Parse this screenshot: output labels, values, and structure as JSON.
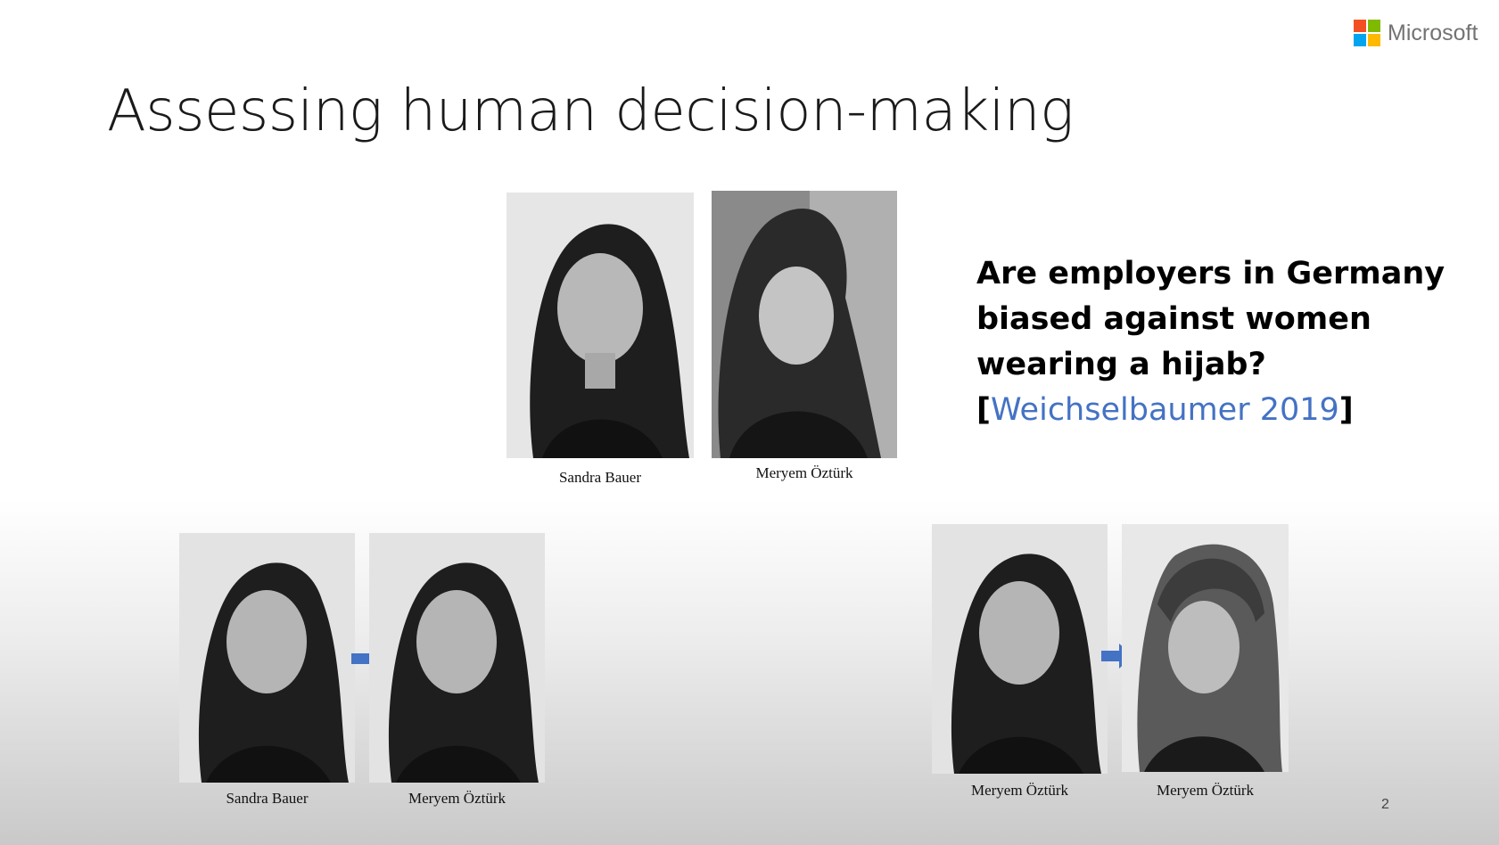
{
  "brand": {
    "name": "Microsoft",
    "logo_colors": [
      "#f25022",
      "#7fba00",
      "#00a4ef",
      "#ffb900"
    ]
  },
  "slide": {
    "title": "Assessing human decision-making",
    "question_text": "Are employers in Germany biased against women wearing a hijab? [",
    "citation": "Weichselbaumer 2019",
    "citation_close": "]",
    "citation_color": "#4472c4",
    "page_number": "2"
  },
  "photos": {
    "top_left_caption": "Sandra Bauer",
    "top_right_caption": "Meryem Öztürk",
    "bottom_left_1_caption": "Sandra Bauer",
    "bottom_left_2_caption": "Meryem Öztürk",
    "bottom_right_1_caption": "Meryem Öztürk",
    "bottom_right_2_caption": "Meryem Öztürk"
  },
  "arrow_color": "#4472c4"
}
